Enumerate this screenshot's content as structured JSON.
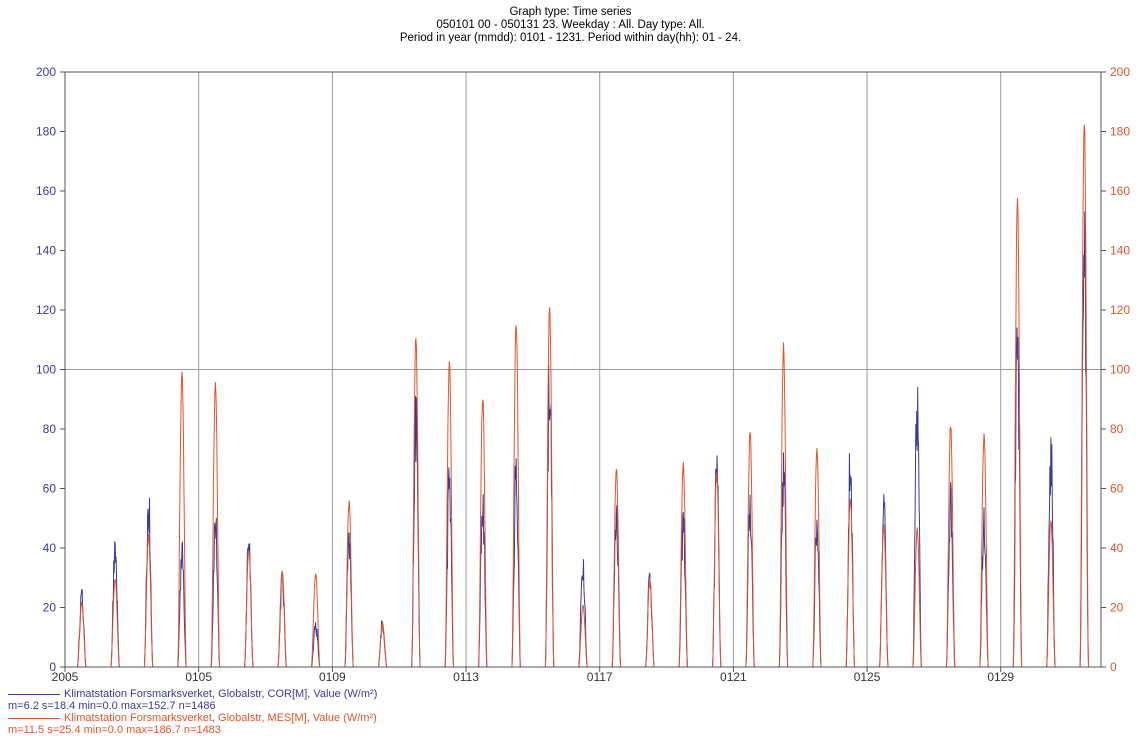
{
  "chart_data": {
    "type": "line",
    "title_lines": [
      "Graph type: Time series",
      "050101 00 - 050131 23. Weekday : All. Day type: All.",
      "Period in year (mmdd): 0101 - 1231. Period within day(hh): 01 - 24."
    ],
    "x_axis": {
      "range_days": [
        1,
        32
      ],
      "ticks": [
        {
          "day": 1,
          "label": "2005"
        },
        {
          "day": 5,
          "label": "0105"
        },
        {
          "day": 9,
          "label": "0109"
        },
        {
          "day": 13,
          "label": "0113"
        },
        {
          "day": 17,
          "label": "0117"
        },
        {
          "day": 21,
          "label": "0121"
        },
        {
          "day": 25,
          "label": "0125"
        },
        {
          "day": 29,
          "label": "0129"
        }
      ]
    },
    "y_axis_left": {
      "range": [
        0,
        200
      ],
      "ticks": [
        0,
        20,
        40,
        60,
        80,
        100,
        120,
        140,
        160,
        180,
        200
      ]
    },
    "y_axis_right": {
      "range": [
        0,
        200
      ],
      "ticks": [
        0,
        20,
        40,
        60,
        80,
        100,
        120,
        140,
        160,
        180,
        200
      ]
    },
    "grid": true,
    "legend_position": "bottom-left",
    "series": [
      {
        "name": "Klimatstation Forsmarksverket, Globalstr, COR[M], Value (W/m²)",
        "stats": "m=6.2 s=18.4 min=0.0 max=152.7 n=1486",
        "color": "#3a3a9a",
        "axis": "left",
        "daily_peaks": [
          26,
          42,
          57,
          42,
          52,
          47,
          32,
          15,
          45,
          16,
          91,
          67,
          59,
          70,
          106,
          38,
          56,
          33,
          52,
          71,
          59,
          72,
          52,
          73,
          58,
          94,
          62,
          55,
          114,
          77,
          153
        ]
      },
      {
        "name": "Klimatstation Forsmarksverket, Globalstr, MES[M], Value (W/m²)",
        "stats": "m=11.5 s=25.4 min=0.0 max=186.7 n=1483",
        "color": "#e0552a",
        "axis": "right",
        "daily_peaks": [
          22,
          30,
          45,
          100,
          97,
          40,
          33,
          32,
          56,
          15,
          112,
          104,
          92,
          118,
          123,
          21,
          68,
          30,
          69,
          67,
          80,
          109,
          74,
          58,
          48,
          47,
          83,
          79,
          160,
          50,
          187
        ]
      }
    ]
  },
  "colors": {
    "left_axis": "#3a3a9a",
    "right_axis": "#e0552a",
    "grid": "#9a9a9a",
    "frame": "#555555"
  }
}
